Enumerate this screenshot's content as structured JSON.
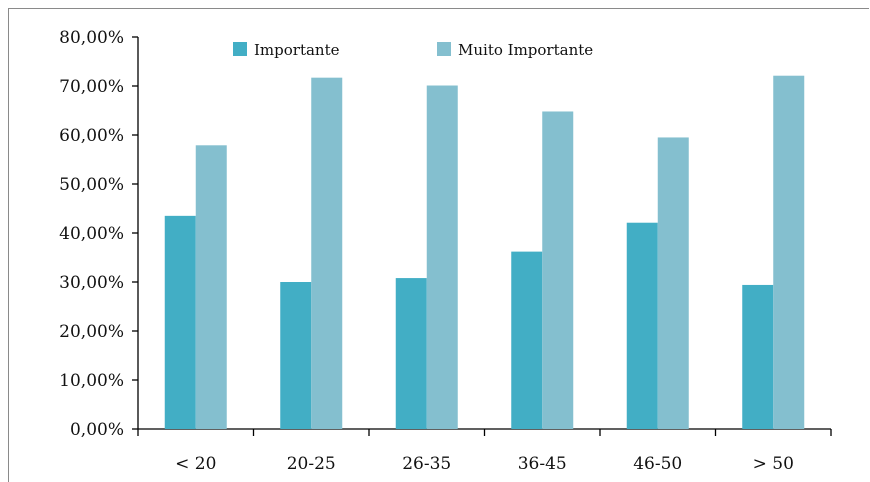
{
  "chart_data": {
    "type": "bar",
    "categories": [
      "< 20",
      "20-25",
      "26-35",
      "36-45",
      "46-50",
      "> 50"
    ],
    "series": [
      {
        "name": "Importante",
        "color": "#42AEC5",
        "values": [
          43.5,
          30.0,
          30.8,
          36.2,
          42.1,
          29.4
        ]
      },
      {
        "name": "Muito Importante",
        "color": "#84BFCF",
        "values": [
          57.9,
          71.7,
          70.1,
          64.8,
          59.5,
          72.1
        ]
      }
    ],
    "title": "",
    "xlabel": "",
    "ylabel": "",
    "ylim": [
      0,
      80
    ],
    "yticks": [
      "0,00%",
      "10,00%",
      "20,00%",
      "30,00%",
      "40,00%",
      "50,00%",
      "60,00%",
      "70,00%",
      "80,00%"
    ],
    "grid": false,
    "legend": "top-center"
  }
}
